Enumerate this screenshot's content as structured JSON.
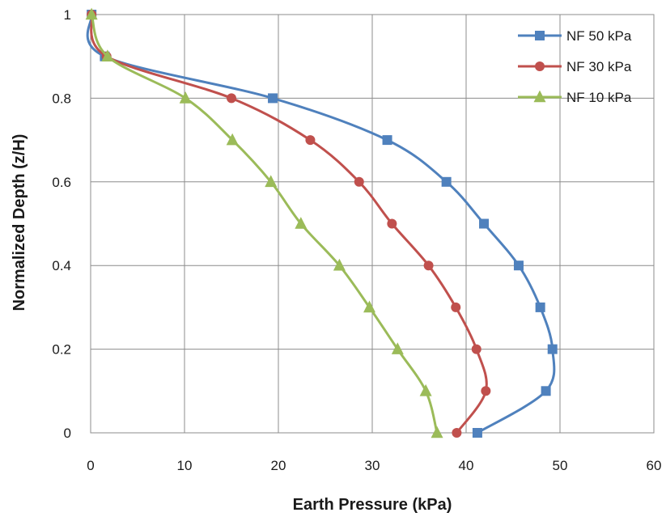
{
  "chart_data": {
    "type": "line",
    "title": "",
    "xlabel": "Earth Pressure (kPa)",
    "ylabel": "Normalized Depth (z/H)",
    "xlim": [
      0,
      60
    ],
    "ylim": [
      0,
      1
    ],
    "xticks": [
      "0",
      "10",
      "20",
      "30",
      "40",
      "50",
      "60"
    ],
    "yticks": [
      "0",
      "0.2",
      "0.4",
      "0.6",
      "0.8",
      "1"
    ],
    "grid": true,
    "legend_position": "top-right",
    "series": [
      {
        "name": "NF 50 kPa",
        "color": "#4F81BD",
        "marker": "square",
        "x": [
          41.2,
          48.5,
          49.2,
          47.9,
          45.6,
          41.9,
          37.9,
          31.6,
          19.4,
          1.5,
          0.1
        ],
        "y": [
          0,
          0.1,
          0.2,
          0.3,
          0.4,
          0.5,
          0.6,
          0.7,
          0.8,
          0.9,
          1.0
        ]
      },
      {
        "name": "NF 30 kPa",
        "color": "#C0504D",
        "marker": "circle",
        "x": [
          39.0,
          42.1,
          41.1,
          38.9,
          36.0,
          32.1,
          28.6,
          23.4,
          15.0,
          1.7,
          0.1
        ],
        "y": [
          0,
          0.1,
          0.2,
          0.3,
          0.4,
          0.5,
          0.6,
          0.7,
          0.8,
          0.9,
          1.0
        ]
      },
      {
        "name": "NF 10 kPa",
        "color": "#9BBB59",
        "marker": "triangle",
        "x": [
          36.9,
          35.7,
          32.7,
          29.7,
          26.5,
          22.4,
          19.2,
          15.1,
          10.1,
          1.8,
          0.1
        ],
        "y": [
          0,
          0.1,
          0.2,
          0.3,
          0.4,
          0.5,
          0.6,
          0.7,
          0.8,
          0.9,
          1.0
        ]
      }
    ]
  }
}
